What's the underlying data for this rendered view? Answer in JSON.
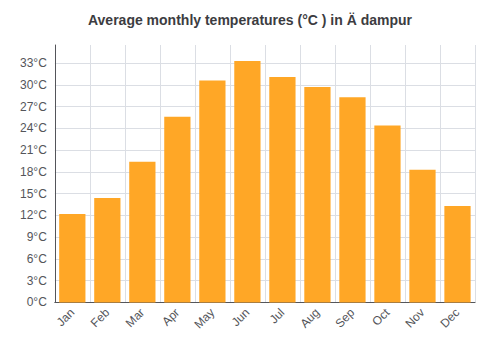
{
  "chart_data": {
    "type": "bar",
    "title": "Average monthly temperatures (°C ) in Ä dampur",
    "categories": [
      "Jan",
      "Feb",
      "Mar",
      "Apr",
      "May",
      "Jun",
      "Jul",
      "Aug",
      "Sep",
      "Oct",
      "Nov",
      "Dec"
    ],
    "values": [
      12.2,
      14.4,
      19.4,
      25.6,
      30.6,
      33.3,
      31.1,
      29.7,
      28.3,
      24.4,
      18.3,
      13.3
    ],
    "color": "#FFA726",
    "ylim": [
      0,
      35.5
    ],
    "yticks": [
      {
        "value": 0,
        "label": "0°C"
      },
      {
        "value": 3,
        "label": "3°C"
      },
      {
        "value": 6,
        "label": "6°C"
      },
      {
        "value": 9,
        "label": "9°C"
      },
      {
        "value": 12,
        "label": "12°C"
      },
      {
        "value": 15,
        "label": "15°C"
      },
      {
        "value": 18,
        "label": "18°C"
      },
      {
        "value": 21,
        "label": "21°C"
      },
      {
        "value": 24,
        "label": "24°C"
      },
      {
        "value": 27,
        "label": "27°C"
      },
      {
        "value": 30,
        "label": "30°C"
      },
      {
        "value": 33,
        "label": "33°C"
      }
    ],
    "grid": true
  }
}
